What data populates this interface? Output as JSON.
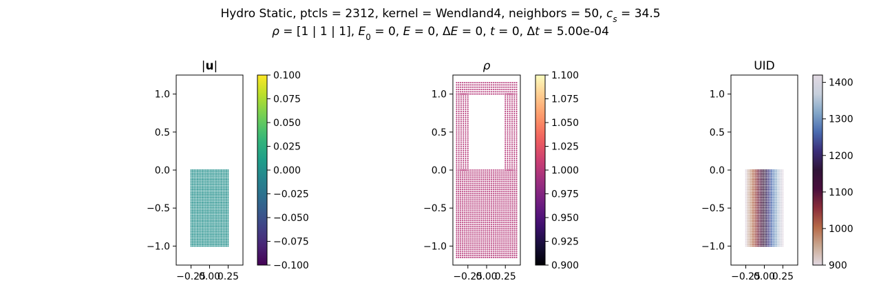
{
  "figure": {
    "title_line1_parts": [
      "Hydro Static, ptcls = 2312, kernel = Wendland4, neighbors = 50, ",
      "c",
      "s",
      " = 34.5"
    ],
    "title_line2_parts": [
      "ρ",
      " = [1 | 1 | 1], ",
      "E",
      "0",
      " = 0, ",
      "E",
      " = 0, Δ",
      "E",
      " = 0, ",
      "t",
      " = 0, Δ",
      "t",
      " = 5.00e-04"
    ]
  },
  "chart_data": [
    {
      "type": "scatter",
      "title": "|u|",
      "xlim": [
        -0.45,
        0.45
      ],
      "ylim": [
        -1.25,
        1.25
      ],
      "xticks": [
        -0.25,
        0.0,
        0.25
      ],
      "xtick_labels": [
        "−0.25",
        "0.00",
        "0.25"
      ],
      "yticks": [
        -1.0,
        -0.5,
        0.0,
        0.5,
        1.0
      ],
      "ytick_labels": [
        "−1.0",
        "−0.5",
        "0.0",
        "0.5",
        "1.0"
      ],
      "regions": [
        {
          "x_range": [
            -0.25,
            0.25
          ],
          "y_range": [
            -1.0,
            0.0
          ],
          "nx": 24,
          "ny": 48,
          "color_mode": "constant",
          "value": 0.0
        }
      ],
      "colorbar": {
        "colormap": "viridis",
        "range": [
          -0.1,
          0.1
        ],
        "ticks": [
          -0.1,
          -0.075,
          -0.05,
          -0.025,
          0.0,
          0.025,
          0.05,
          0.075,
          0.1
        ],
        "tick_labels": [
          "−0.100",
          "−0.075",
          "−0.050",
          "−0.025",
          "0.000",
          "0.025",
          "0.050",
          "0.075",
          "0.100"
        ]
      }
    },
    {
      "type": "scatter",
      "title": "ρ",
      "xlim": [
        -0.45,
        0.45
      ],
      "ylim": [
        -1.25,
        1.25
      ],
      "xticks": [
        -0.25,
        0.0,
        0.25
      ],
      "xtick_labels": [
        "−0.25",
        "0.00",
        "0.25"
      ],
      "yticks": [
        -1.0,
        -0.5,
        0.0,
        0.5,
        1.0
      ],
      "ytick_labels": [
        "−1.0",
        "−0.5",
        "0.0",
        "0.5",
        "1.0"
      ],
      "regions": [
        {
          "x_range": [
            -0.4,
            0.4
          ],
          "y_range": [
            -1.15,
            0.0
          ],
          "nx": 32,
          "ny": 46,
          "color_mode": "constant",
          "value": 1.0
        },
        {
          "x_range": [
            -0.4,
            0.4
          ],
          "y_range": [
            1.0,
            1.15
          ],
          "nx": 32,
          "ny": 6,
          "color_mode": "constant",
          "value": 1.0
        },
        {
          "x_range": [
            -0.4,
            -0.25
          ],
          "y_range": [
            0.0,
            1.0
          ],
          "nx": 6,
          "ny": 40,
          "color_mode": "constant",
          "value": 1.0
        },
        {
          "x_range": [
            0.25,
            0.4
          ],
          "y_range": [
            0.0,
            1.0
          ],
          "nx": 6,
          "ny": 40,
          "color_mode": "constant",
          "value": 1.0
        }
      ],
      "colorbar": {
        "colormap": "magma",
        "range": [
          0.9,
          1.1
        ],
        "ticks": [
          0.9,
          0.925,
          0.95,
          0.975,
          1.0,
          1.025,
          1.05,
          1.075,
          1.1
        ],
        "tick_labels": [
          "0.900",
          "0.925",
          "0.950",
          "0.975",
          "1.000",
          "1.025",
          "1.050",
          "1.075",
          "1.100"
        ]
      }
    },
    {
      "type": "scatter",
      "title": "UID",
      "xlim": [
        -0.45,
        0.45
      ],
      "ylim": [
        -1.25,
        1.25
      ],
      "xticks": [
        -0.25,
        0.0,
        0.25
      ],
      "xtick_labels": [
        "−0.25",
        "0.00",
        "0.25"
      ],
      "yticks": [
        -1.0,
        -0.5,
        0.0,
        0.5,
        1.0
      ],
      "ytick_labels": [
        "−1.0",
        "−0.5",
        "0.0",
        "0.5",
        "1.0"
      ],
      "regions": [
        {
          "x_range": [
            -0.25,
            0.25
          ],
          "y_range": [
            -1.0,
            0.0
          ],
          "nx": 24,
          "ny": 48,
          "color_mode": "by_column",
          "value_range": [
            900,
            1420
          ]
        }
      ],
      "colorbar": {
        "colormap": "twilight",
        "range": [
          900,
          1420
        ],
        "ticks": [
          900,
          1000,
          1100,
          1200,
          1300,
          1400
        ],
        "tick_labels": [
          "900",
          "1000",
          "1100",
          "1200",
          "1300",
          "1400"
        ]
      }
    }
  ]
}
